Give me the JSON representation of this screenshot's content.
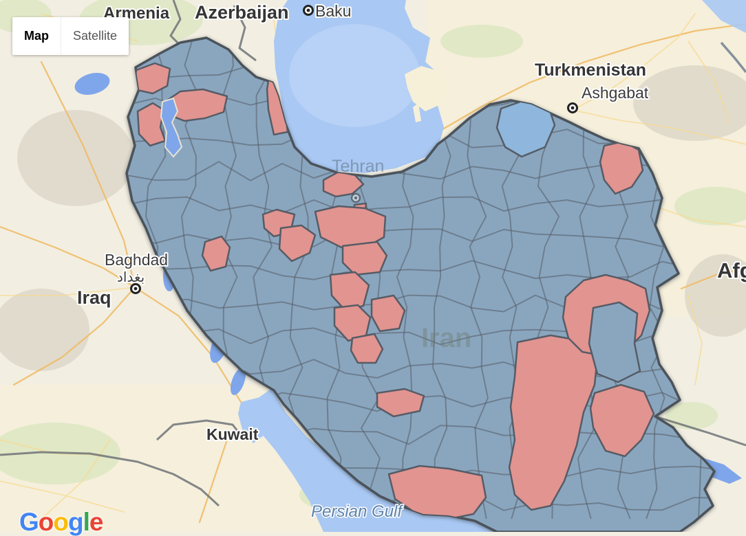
{
  "map_type_control": {
    "map": "Map",
    "satellite": "Satellite"
  },
  "labels": {
    "countries": {
      "armenia": "Armenia",
      "azerbaijan": "Azerbaijan",
      "turkmenistan": "Turkmenistan",
      "iraq": "Iraq",
      "kuwait": "Kuwait",
      "afghanistan_partial": "Afg",
      "iran_faint": "Iran"
    },
    "cities": {
      "baku": "Baku",
      "ashgabat": "Ashgabat",
      "baghdad": "Baghdad",
      "baghdad_arabic": "بغداد",
      "tehran_faint": "Tehran"
    },
    "water": {
      "persian_gulf": "Persian Gulf"
    }
  },
  "attribution": {
    "brand": "Google",
    "letters": [
      {
        "ch": "G",
        "style": "color:#4285F4"
      },
      {
        "ch": "o",
        "style": "color:#EA4335"
      },
      {
        "ch": "o",
        "style": "color:#FBBC05"
      },
      {
        "ch": "g",
        "style": "color:#4285F4"
      },
      {
        "ch": "l",
        "style": "color:#34A853"
      },
      {
        "ch": "e",
        "style": "color:#EA4335"
      }
    ]
  },
  "colors": {
    "land": "#f2eee1",
    "land_east": "#f7f0d8",
    "water": "#a9c8f3",
    "water_light": "#c3d8fa",
    "lake": "#7fa6ea",
    "county_blue": "#8aa6bf",
    "county_red": "#e29490",
    "county_light_blue": "#8fb6dc",
    "county_border": "#565c66",
    "iran_outline": "#4c525a",
    "road": "#f0b95f",
    "road_light": "#f7d98f",
    "country_border": "#6f7378",
    "rail": "#84919c",
    "label_dark": "#353535",
    "label_city": "#3c3c3c",
    "water_label": "#5d82a8",
    "green": "#d9e6bd",
    "mountain": "#dcd6c8"
  }
}
